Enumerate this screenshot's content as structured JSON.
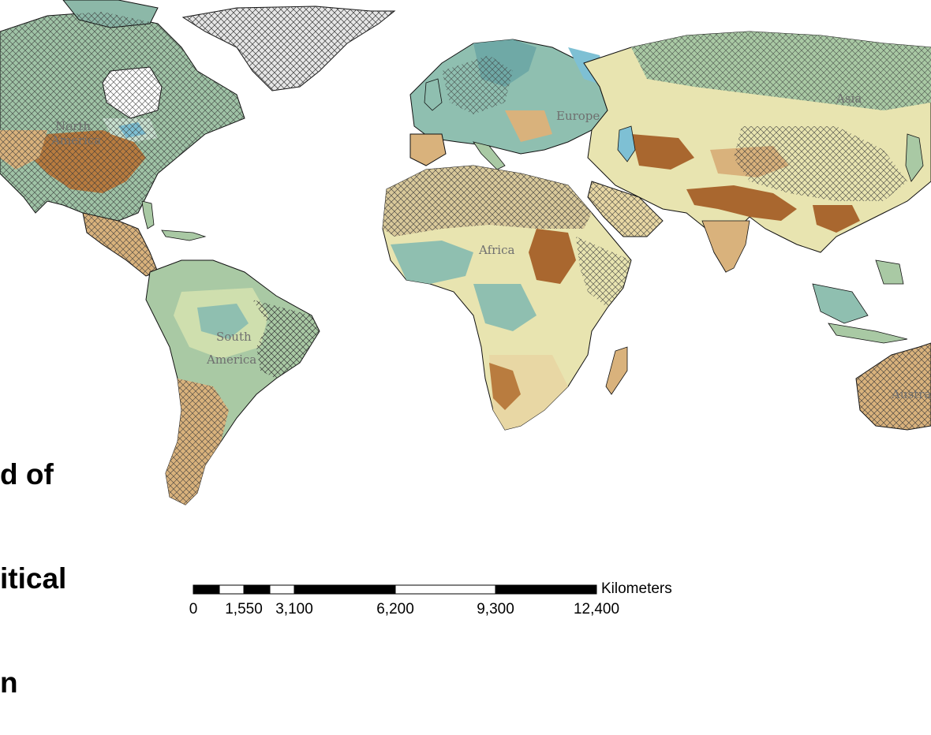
{
  "map": {
    "region_labels": {
      "north_america_1": "North",
      "north_america_2": "America",
      "south_america_1": "South",
      "south_america_2": "America",
      "europe": "Europe",
      "africa": "Africa",
      "asia": "Asia",
      "australia": "Australia"
    },
    "legend_title_lines": [
      "d of",
      "itical",
      "n"
    ],
    "scale_bar": {
      "unit": "Kilometers",
      "tick_labels": [
        "0",
        "1,550",
        "3,100",
        "6,200",
        "9,300",
        "12,400"
      ]
    },
    "colors": {
      "humid": "#6fa9a6",
      "moist": "#a9c9a4",
      "medium": "#e8e4b0",
      "dry": "#d9b27c",
      "very_dry": "#a9672f",
      "water_blue": "#7ec0d4",
      "hatch": "#3a3a3a"
    }
  }
}
